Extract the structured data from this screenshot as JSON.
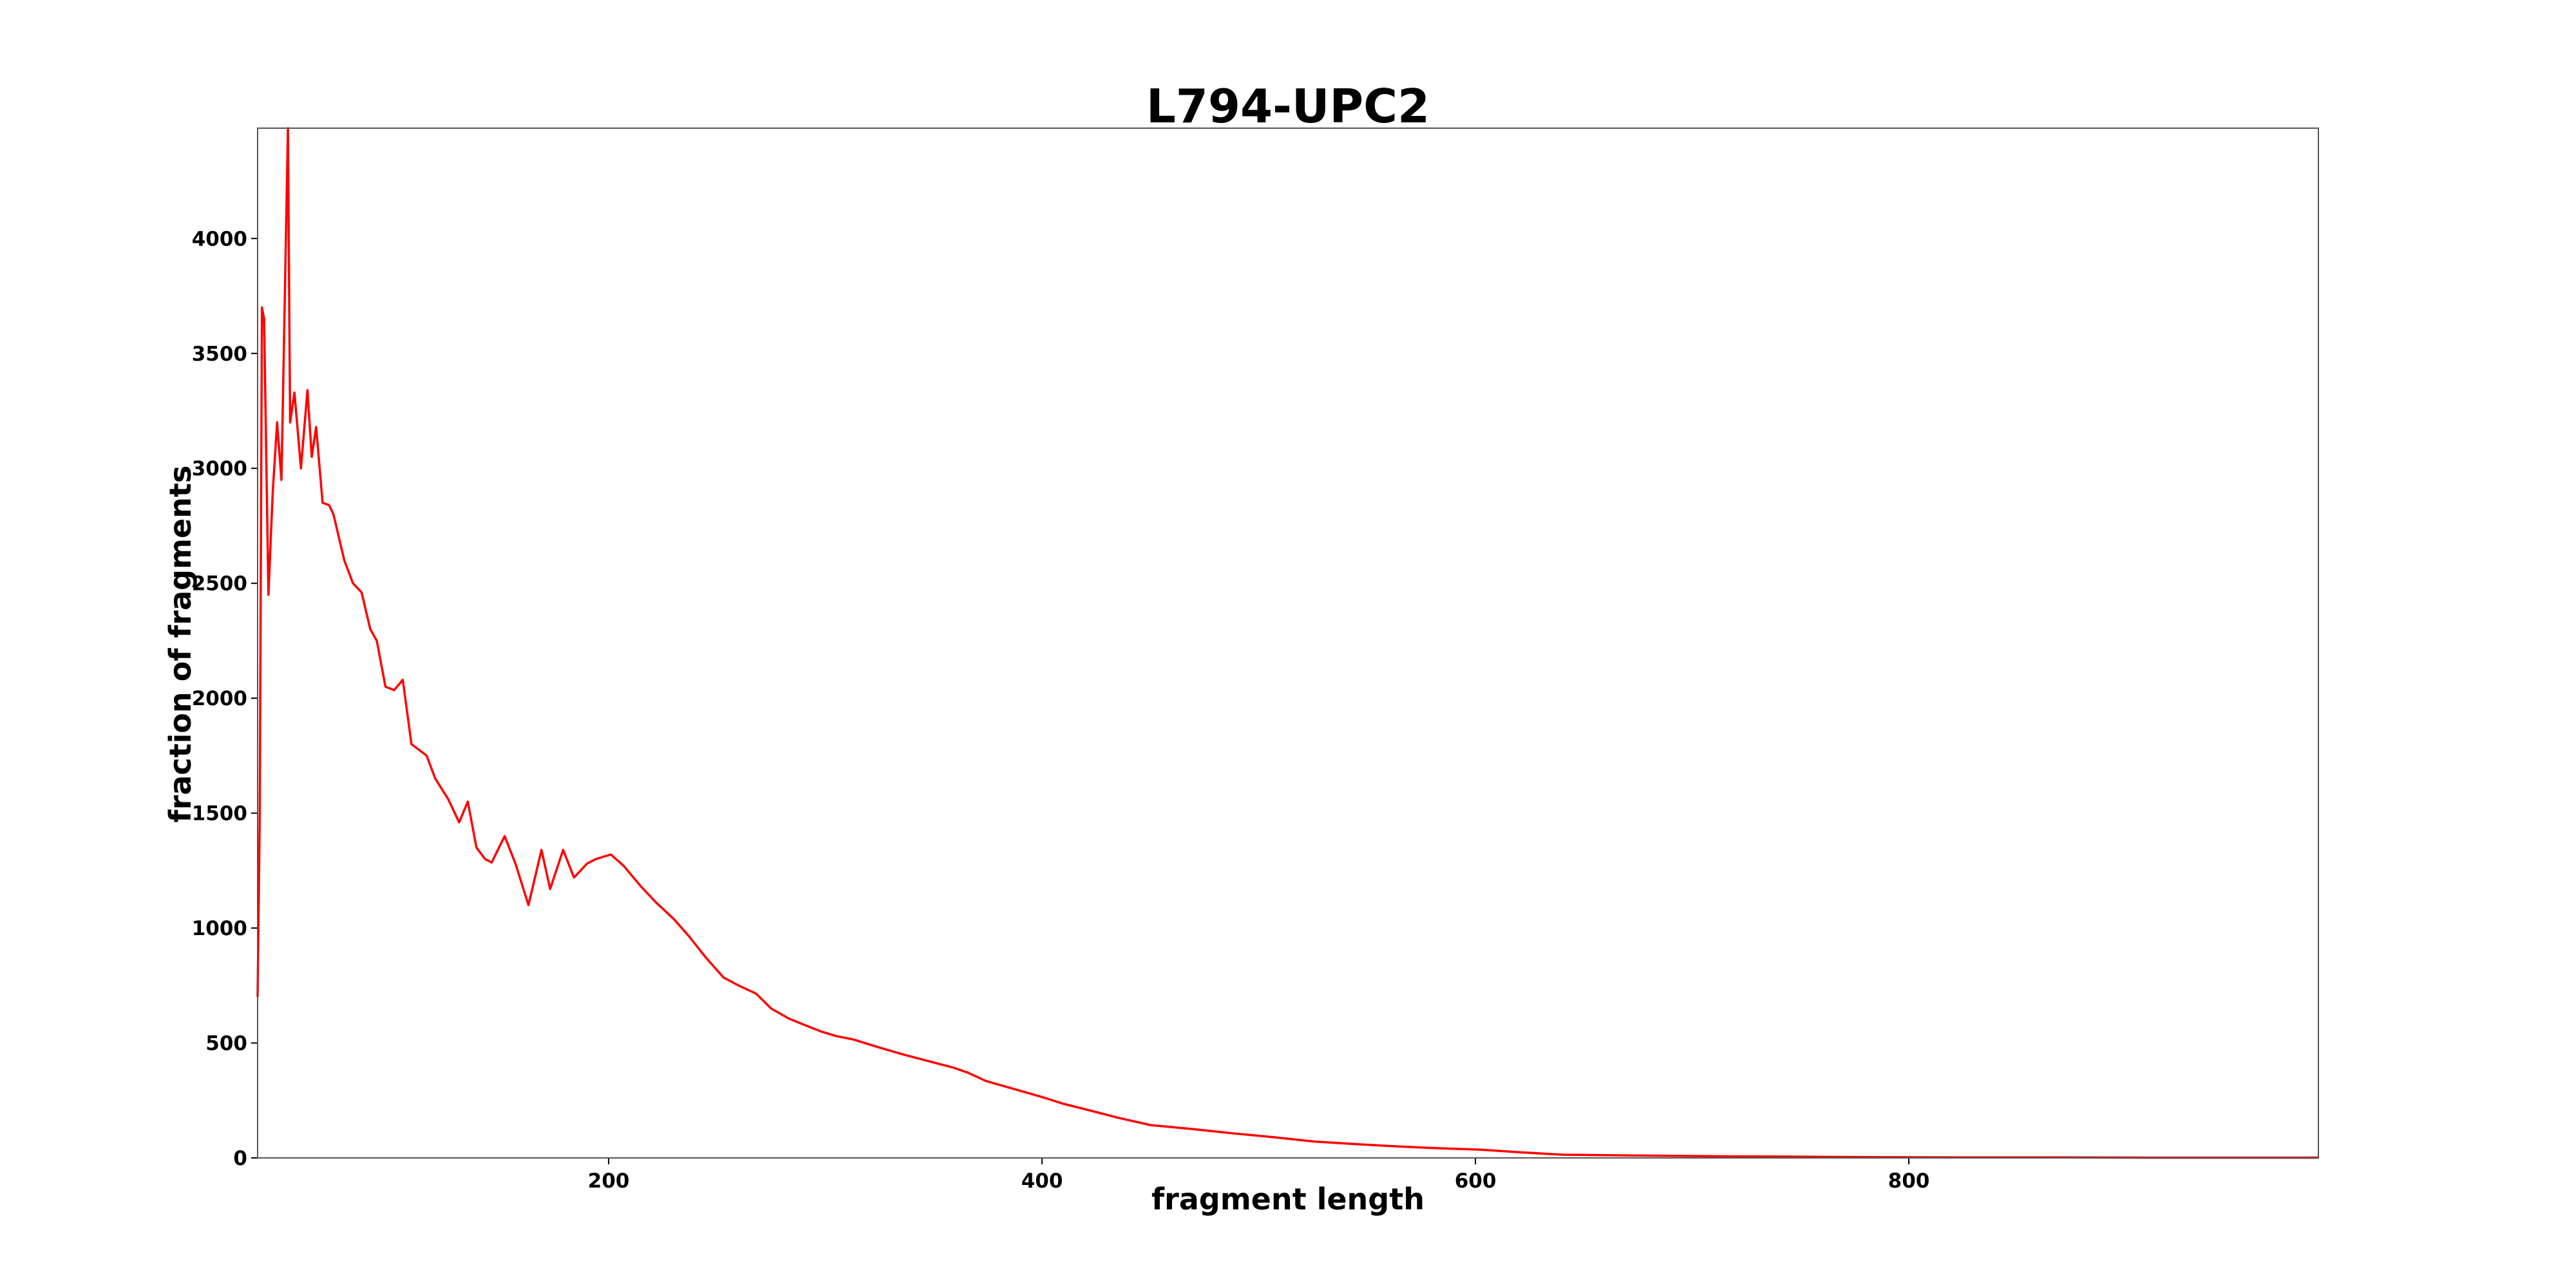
{
  "chart_data": {
    "type": "line",
    "title": "L794-UPC2",
    "x_label": "fragment length",
    "y_label": "fraction of fragments",
    "color": "#ff0000",
    "grid": false,
    "xlim": [
      38,
      989
    ],
    "ylim": [
      0,
      4480
    ],
    "xticks": [
      200,
      400,
      600,
      800
    ],
    "yticks": [
      0,
      500,
      1000,
      1500,
      2000,
      2500,
      3000,
      3500,
      4000
    ],
    "x": [
      38,
      39,
      40,
      41,
      43,
      45,
      47,
      49,
      52,
      53,
      55,
      58,
      61,
      63,
      65,
      68,
      71,
      73,
      78,
      82,
      86,
      90,
      93,
      97,
      101,
      105,
      109,
      116,
      120,
      126,
      131,
      135,
      139,
      143,
      146,
      152,
      157,
      163,
      169,
      173,
      179,
      184,
      190,
      194,
      201,
      207,
      215,
      222,
      230,
      237,
      245,
      253,
      260,
      268,
      275,
      283,
      290,
      298,
      305,
      313,
      325,
      336,
      348,
      359,
      366,
      374,
      387,
      400,
      410,
      419,
      435,
      450,
      470,
      488,
      507,
      526,
      545,
      564,
      583,
      602,
      620,
      640,
      660,
      677,
      715,
      753,
      790,
      829,
      870,
      910,
      950,
      989
    ],
    "values": [
      700,
      1500,
      3700,
      3650,
      2450,
      2900,
      3200,
      2950,
      4480,
      3200,
      3330,
      3000,
      3340,
      3050,
      3180,
      2850,
      2840,
      2800,
      2600,
      2500,
      2460,
      2300,
      2250,
      2050,
      2035,
      2080,
      1800,
      1750,
      1650,
      1560,
      1460,
      1550,
      1350,
      1300,
      1285,
      1400,
      1280,
      1100,
      1340,
      1170,
      1340,
      1220,
      1280,
      1300,
      1320,
      1270,
      1180,
      1110,
      1040,
      965,
      870,
      785,
      750,
      715,
      650,
      607,
      580,
      550,
      530,
      515,
      480,
      450,
      420,
      393,
      370,
      335,
      300,
      265,
      235,
      214,
      175,
      143,
      125,
      107,
      90,
      71,
      60,
      50,
      42,
      36,
      25,
      14,
      12,
      10,
      7,
      5,
      3,
      2,
      2,
      1,
      1,
      1
    ]
  }
}
